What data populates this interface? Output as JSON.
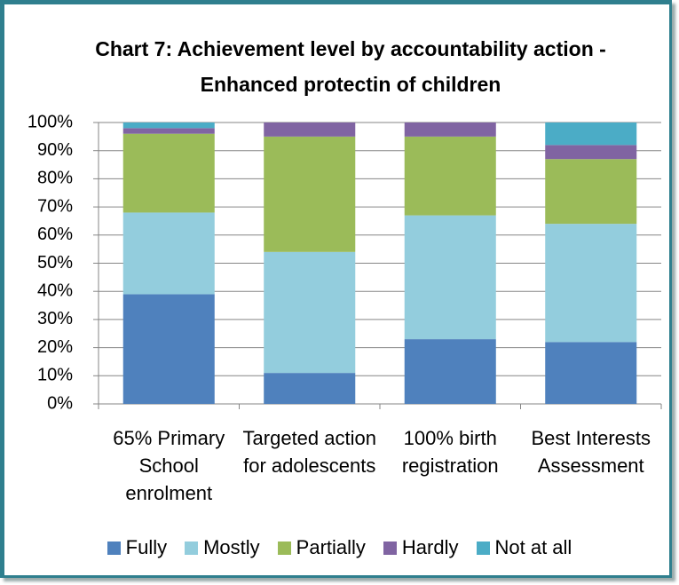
{
  "chart_data": {
    "type": "stacked-bar",
    "title": "Chart 7: Achievement level by accountability action - Enhanced protectin of children",
    "categories": [
      "65% Primary School enrolment",
      "Targeted action for adolescents",
      "100% birth registration",
      "Best Interests Assessment"
    ],
    "series": [
      {
        "name": "Fully",
        "color": "#4f81bd",
        "values": [
          39,
          11,
          23,
          22
        ]
      },
      {
        "name": "Mostly",
        "color": "#93cddd",
        "values": [
          29,
          43,
          44,
          42
        ]
      },
      {
        "name": "Partially",
        "color": "#9bbb59",
        "values": [
          28,
          41,
          28,
          23
        ]
      },
      {
        "name": "Hardly",
        "color": "#8064a2",
        "values": [
          2,
          5,
          5,
          5
        ]
      },
      {
        "name": "Not at all",
        "color": "#4bacc6",
        "values": [
          2,
          0,
          0,
          8
        ]
      }
    ],
    "ylim": [
      0,
      100
    ],
    "yticks": [
      {
        "value": 0,
        "label": "0%"
      },
      {
        "value": 10,
        "label": "10%"
      },
      {
        "value": 20,
        "label": "20%"
      },
      {
        "value": 30,
        "label": "30%"
      },
      {
        "value": 40,
        "label": "40%"
      },
      {
        "value": 50,
        "label": "50%"
      },
      {
        "value": 60,
        "label": "60%"
      },
      {
        "value": 70,
        "label": "70%"
      },
      {
        "value": 80,
        "label": "80%"
      },
      {
        "value": 90,
        "label": "90%"
      },
      {
        "value": 100,
        "label": "100%"
      }
    ],
    "legend": "bottom"
  }
}
